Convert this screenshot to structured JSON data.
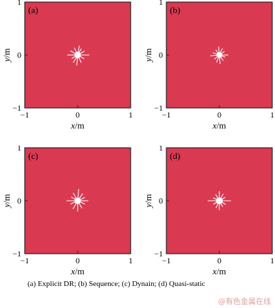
{
  "chart_data": [
    {
      "type": "heatmap",
      "panel_label": "(a)",
      "xlabel_var": "x",
      "xlabel_unit": "/m",
      "ylabel_var": "y",
      "ylabel_unit": "/m",
      "xlim": [
        -1,
        1
      ],
      "ylim": [
        -1,
        1
      ],
      "x_ticks": [
        -1,
        0,
        1
      ],
      "y_ticks": [
        -1,
        0,
        1
      ],
      "field_color": "#d93a52",
      "hole_center": [
        0,
        0
      ],
      "hole_radius": 0.06,
      "cracks": [
        {
          "angle": 0,
          "length": 0.22
        },
        {
          "angle": 30,
          "length": 0.15
        },
        {
          "angle": 60,
          "length": 0.14
        },
        {
          "angle": 80,
          "length": 0.18
        },
        {
          "angle": 115,
          "length": 0.15
        },
        {
          "angle": 150,
          "length": 0.16
        },
        {
          "angle": 180,
          "length": 0.2
        },
        {
          "angle": 210,
          "length": 0.13
        },
        {
          "angle": 240,
          "length": 0.17
        },
        {
          "angle": 265,
          "length": 0.2
        },
        {
          "angle": 295,
          "length": 0.16
        },
        {
          "angle": 330,
          "length": 0.14
        }
      ]
    },
    {
      "type": "heatmap",
      "panel_label": "(b)",
      "xlabel_var": "x",
      "xlabel_unit": "/m",
      "ylabel_var": "y",
      "ylabel_unit": "/m",
      "xlim": [
        -1,
        1
      ],
      "ylim": [
        -1,
        1
      ],
      "x_ticks": [
        -1,
        0,
        1
      ],
      "y_ticks": [
        -1,
        0,
        1
      ],
      "field_color": "#d93a52",
      "hole_center": [
        0,
        0
      ],
      "hole_radius": 0.055,
      "cracks": [
        {
          "angle": 0,
          "length": 0.17
        },
        {
          "angle": 35,
          "length": 0.12
        },
        {
          "angle": 65,
          "length": 0.14
        },
        {
          "angle": 95,
          "length": 0.16
        },
        {
          "angle": 125,
          "length": 0.12
        },
        {
          "angle": 160,
          "length": 0.13
        },
        {
          "angle": 185,
          "length": 0.17
        },
        {
          "angle": 220,
          "length": 0.12
        },
        {
          "angle": 250,
          "length": 0.15
        },
        {
          "angle": 275,
          "length": 0.17
        },
        {
          "angle": 305,
          "length": 0.13
        },
        {
          "angle": 340,
          "length": 0.12
        }
      ]
    },
    {
      "type": "heatmap",
      "panel_label": "(c)",
      "xlabel_var": "x",
      "xlabel_unit": "/m",
      "ylabel_var": "y",
      "ylabel_unit": "/m",
      "xlim": [
        -1,
        1
      ],
      "ylim": [
        -1,
        1
      ],
      "x_ticks": [
        -1,
        0,
        1
      ],
      "y_ticks": [
        -1,
        0,
        1
      ],
      "field_color": "#d93a52",
      "hole_center": [
        0,
        0
      ],
      "hole_radius": 0.06,
      "cracks": [
        {
          "angle": 0,
          "length": 0.2
        },
        {
          "angle": 25,
          "length": 0.15
        },
        {
          "angle": 55,
          "length": 0.17
        },
        {
          "angle": 85,
          "length": 0.22
        },
        {
          "angle": 120,
          "length": 0.17
        },
        {
          "angle": 150,
          "length": 0.14
        },
        {
          "angle": 180,
          "length": 0.21
        },
        {
          "angle": 205,
          "length": 0.15
        },
        {
          "angle": 240,
          "length": 0.18
        },
        {
          "angle": 270,
          "length": 0.2
        },
        {
          "angle": 300,
          "length": 0.16
        },
        {
          "angle": 335,
          "length": 0.15
        }
      ]
    },
    {
      "type": "heatmap",
      "panel_label": "(d)",
      "xlabel_var": "x",
      "xlabel_unit": "/m",
      "ylabel_var": "y",
      "ylabel_unit": "/m",
      "xlim": [
        -1,
        1
      ],
      "ylim": [
        -1,
        1
      ],
      "x_ticks": [
        -1,
        0,
        1
      ],
      "y_ticks": [
        -1,
        0,
        1
      ],
      "field_color": "#d93a52",
      "hole_center": [
        0,
        0
      ],
      "hole_radius": 0.065,
      "cracks": [
        {
          "angle": 0,
          "length": 0.22
        },
        {
          "angle": 30,
          "length": 0.13
        },
        {
          "angle": 60,
          "length": 0.15
        },
        {
          "angle": 90,
          "length": 0.18
        },
        {
          "angle": 120,
          "length": 0.14
        },
        {
          "angle": 155,
          "length": 0.13
        },
        {
          "angle": 180,
          "length": 0.22
        },
        {
          "angle": 210,
          "length": 0.13
        },
        {
          "angle": 245,
          "length": 0.15
        },
        {
          "angle": 270,
          "length": 0.18
        },
        {
          "angle": 300,
          "length": 0.13
        },
        {
          "angle": 330,
          "length": 0.14
        }
      ]
    }
  ],
  "caption": "(a) Explicit DR; (b) Sequence; (c) Dynain; (d) Quasi-static",
  "watermark": "@有色金属在线"
}
